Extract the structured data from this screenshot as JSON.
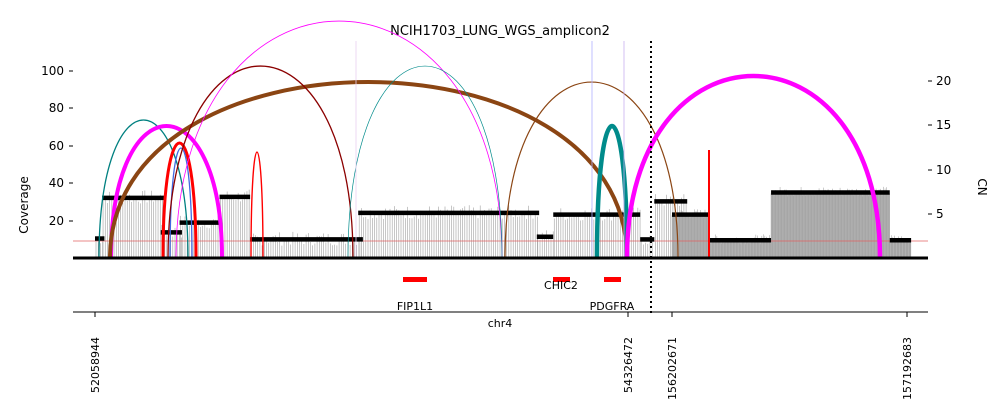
{
  "chart_data": {
    "type": "amplicon-structure",
    "title": "NCIH1703_LUNG_WGS_amplicon2",
    "xlabel": "chr4",
    "ylabel_left": "Coverage",
    "ylabel_right": "CN",
    "left_ticks": [
      "20",
      "40",
      "60",
      "80",
      "100"
    ],
    "right_ticks": [
      "5",
      "10",
      "15",
      "20"
    ],
    "x_ticks": [
      "52058944",
      "54326472",
      "156202671",
      "157192683"
    ],
    "genes": [
      {
        "name": "FIP1L1",
        "color": "#ff0000"
      },
      {
        "name": "CHIC2",
        "color": "#ff0000"
      },
      {
        "name": "PDGFRA",
        "color": "#ff0000"
      }
    ],
    "segments": [
      {
        "region": "left",
        "start": 0.0,
        "end": 0.04,
        "cn": 2.2
      },
      {
        "region": "left",
        "start": 0.03,
        "end": 0.3,
        "cn": 6.8
      },
      {
        "region": "left",
        "start": 0.28,
        "end": 0.37,
        "cn": 2.9
      },
      {
        "region": "left",
        "start": 0.36,
        "end": 0.54,
        "cn": 4.0
      },
      {
        "region": "left",
        "start": 0.53,
        "end": 0.66,
        "cn": 6.9
      },
      {
        "region": "left",
        "start": 0.66,
        "end": 1.14,
        "cn": 2.1
      },
      {
        "region": "left",
        "start": 1.12,
        "end": 1.89,
        "cn": 5.1
      },
      {
        "region": "left",
        "start": 1.88,
        "end": 1.95,
        "cn": 2.4
      },
      {
        "region": "left",
        "start": 1.95,
        "end": 2.32,
        "cn": 4.9
      },
      {
        "region": "left",
        "start": 2.32,
        "end": 2.38,
        "cn": 2.1
      },
      {
        "region": "left",
        "start": 2.38,
        "end": 2.52,
        "cn": 6.4
      },
      {
        "region": "right",
        "start": 156202671,
        "end": 156360000,
        "cn": 4.9
      },
      {
        "region": "right",
        "start": 156360000,
        "end": 156620000,
        "cn": 2.0
      },
      {
        "region": "right",
        "start": 156620000,
        "end": 157120000,
        "cn": 7.4
      },
      {
        "region": "right",
        "start": 157120000,
        "end": 157210000,
        "cn": 2.0
      }
    ]
  }
}
